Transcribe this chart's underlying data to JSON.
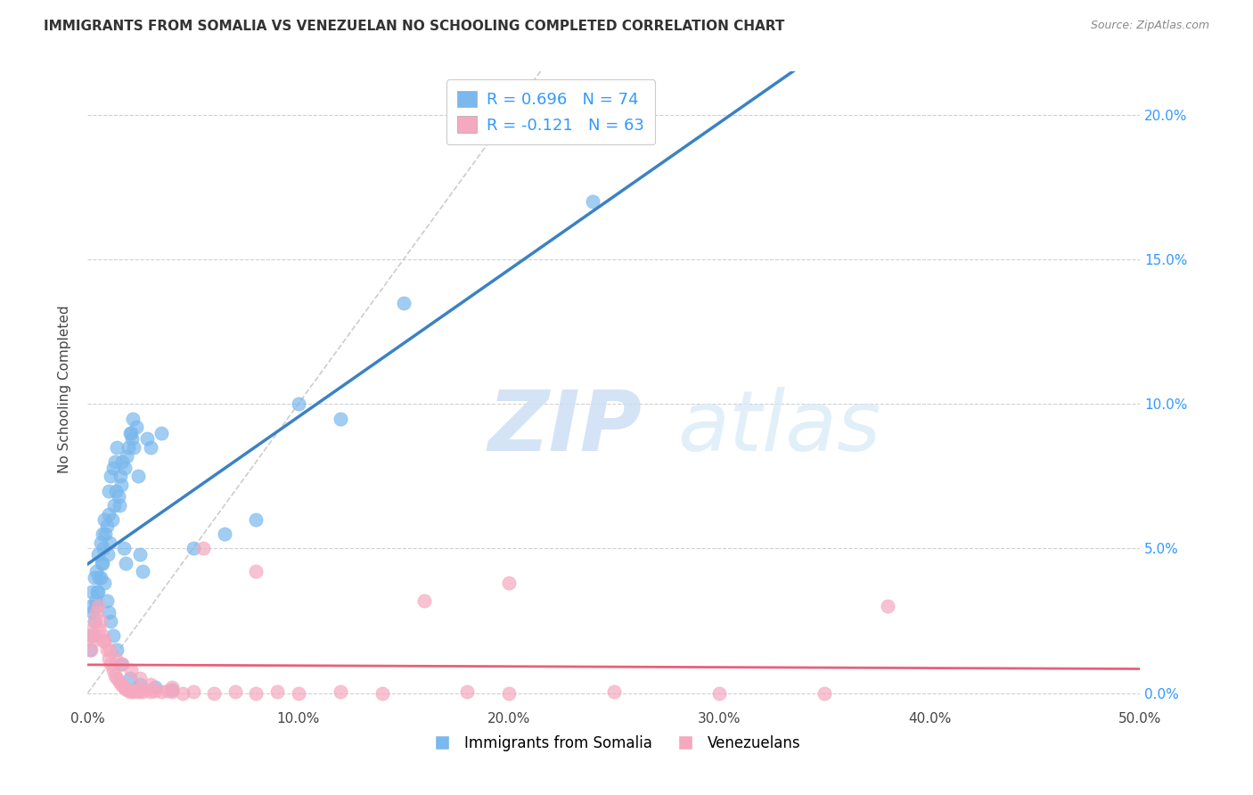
{
  "title": "IMMIGRANTS FROM SOMALIA VS VENEZUELAN NO SCHOOLING COMPLETED CORRELATION CHART",
  "source": "Source: ZipAtlas.com",
  "ylabel": "No Schooling Completed",
  "right_ytick_vals": [
    0.0,
    5.0,
    10.0,
    15.0,
    20.0
  ],
  "xlim": [
    0.0,
    50.0
  ],
  "ylim": [
    -0.5,
    21.5
  ],
  "somalia_color": "#7ab8ed",
  "venezuela_color": "#f5a8bf",
  "somalia_line_color": "#3b82c4",
  "venezuela_line_color": "#e8607a",
  "diagonal_color": "#c8c8c8",
  "somalia_R": 0.696,
  "venezuela_R": -0.121,
  "somalia_N": 74,
  "venezuela_N": 63,
  "watermark_zip": "ZIP",
  "watermark_atlas": "atlas",
  "somalia_points_x": [
    0.2,
    0.3,
    0.4,
    0.5,
    0.6,
    0.7,
    0.8,
    0.9,
    1.0,
    1.0,
    1.1,
    1.2,
    1.3,
    1.4,
    1.5,
    1.6,
    1.7,
    1.8,
    2.0,
    2.1,
    2.2,
    2.3,
    2.4,
    2.5,
    2.6,
    2.8,
    3.0,
    3.5,
    0.15,
    0.25,
    0.35,
    0.45,
    0.55,
    0.65,
    0.75,
    0.85,
    0.95,
    1.05,
    1.15,
    1.25,
    1.35,
    1.45,
    1.55,
    1.65,
    1.75,
    1.85,
    1.95,
    2.05,
    2.15,
    0.1,
    0.2,
    0.3,
    0.4,
    0.5,
    0.6,
    0.7,
    0.8,
    0.9,
    1.0,
    1.1,
    1.2,
    1.4,
    1.6,
    2.0,
    2.5,
    3.2,
    4.0,
    5.0,
    6.5,
    8.0,
    10.0,
    12.0,
    15.0,
    24.0
  ],
  "somalia_points_y": [
    3.5,
    4.0,
    4.2,
    4.8,
    5.2,
    5.5,
    6.0,
    5.8,
    6.2,
    7.0,
    7.5,
    7.8,
    8.0,
    8.5,
    6.5,
    7.2,
    5.0,
    4.5,
    9.0,
    8.8,
    8.5,
    9.2,
    7.5,
    4.8,
    4.2,
    8.8,
    8.5,
    9.0,
    3.0,
    2.8,
    3.2,
    3.5,
    4.0,
    4.5,
    5.0,
    5.5,
    4.8,
    5.2,
    6.0,
    6.5,
    7.0,
    6.8,
    7.5,
    8.0,
    7.8,
    8.2,
    8.5,
    9.0,
    9.5,
    1.5,
    2.0,
    2.5,
    3.0,
    3.5,
    4.0,
    4.5,
    3.8,
    3.2,
    2.8,
    2.5,
    2.0,
    1.5,
    1.0,
    0.5,
    0.3,
    0.2,
    0.1,
    5.0,
    5.5,
    6.0,
    10.0,
    9.5,
    13.5,
    17.0
  ],
  "venezuela_points_x": [
    0.1,
    0.2,
    0.3,
    0.4,
    0.5,
    0.6,
    0.7,
    0.8,
    0.9,
    1.0,
    1.1,
    1.2,
    1.3,
    1.4,
    1.5,
    1.6,
    1.7,
    1.8,
    1.9,
    2.0,
    2.1,
    2.2,
    2.3,
    2.4,
    2.5,
    2.6,
    2.8,
    3.0,
    3.2,
    3.5,
    3.8,
    4.0,
    4.5,
    5.0,
    6.0,
    7.0,
    8.0,
    9.0,
    10.0,
    12.0,
    14.0,
    16.0,
    18.0,
    20.0,
    25.0,
    30.0,
    35.0,
    38.0,
    0.15,
    0.25,
    0.35,
    0.55,
    0.75,
    1.05,
    1.35,
    1.65,
    2.05,
    2.5,
    3.0,
    4.0,
    5.5,
    8.0,
    20.0
  ],
  "venezuela_points_y": [
    2.0,
    2.2,
    2.5,
    2.8,
    3.0,
    2.5,
    2.0,
    1.8,
    1.5,
    1.2,
    1.0,
    0.8,
    0.6,
    0.5,
    0.4,
    0.3,
    0.2,
    0.15,
    0.1,
    0.05,
    0.08,
    0.05,
    0.1,
    0.05,
    0.08,
    0.05,
    0.1,
    0.05,
    0.08,
    0.05,
    0.08,
    0.05,
    0.0,
    0.05,
    0.0,
    0.05,
    0.0,
    0.05,
    0.0,
    0.05,
    0.0,
    3.2,
    0.05,
    0.0,
    0.05,
    0.0,
    0.0,
    3.0,
    1.5,
    1.8,
    2.0,
    2.2,
    1.8,
    1.5,
    1.2,
    1.0,
    0.8,
    0.5,
    0.3,
    0.2,
    5.0,
    4.2,
    3.8
  ]
}
